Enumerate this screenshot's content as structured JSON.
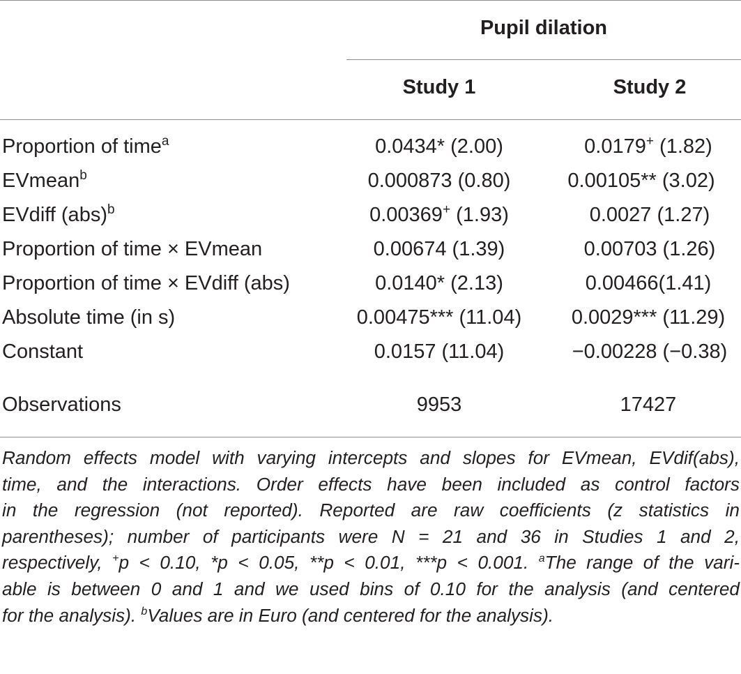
{
  "table": {
    "group_header": "Pupil dilation",
    "columns": [
      "Study 1",
      "Study 2"
    ],
    "rows": [
      {
        "label": "Proportion of time",
        "sup": "a",
        "c1": "0.0434* (2.00)",
        "c2_value": "0.0179",
        "c2_sup": "+",
        "c2_z": " (1.82)"
      },
      {
        "label": "EVmean",
        "sup": "b",
        "c1": "0.000873 (0.80)",
        "c2": "0.00105** (3.02)"
      },
      {
        "label": "EVdiff (abs)",
        "sup": "b",
        "c1_value": "0.00369",
        "c1_sup": "+",
        "c1_z": " (1.93)",
        "c2": "0.0027 (1.27)"
      },
      {
        "label": "Proportion of time × EVmean",
        "c1": "0.00674 (1.39)",
        "c2": "0.00703 (1.26)"
      },
      {
        "label": "Proportion of time × EVdiff (abs)",
        "c1": "0.0140* (2.13)",
        "c2": "0.00466(1.41)"
      },
      {
        "label": "Absolute time (in s)",
        "c1": "0.00475*** (11.04)",
        "c2": "0.0029*** (11.29)"
      },
      {
        "label": "Constant",
        "c1": "0.0157 (11.04)",
        "c2": "−0.00228 (−0.38)"
      }
    ],
    "observations": {
      "label": "Observations",
      "c1": "9953",
      "c2": "17427"
    }
  },
  "footnote": {
    "lines": [
      "Random effects model with varying intercepts and slopes for EVmean, EVdif(abs),",
      "time, and the interactions. Order effects have been included as control factors",
      "in the regression (not reported). Reported are raw coefficients (z statistics in",
      "parentheses); number of participants were N = 21 and 36 in Studies 1 and 2,"
    ],
    "line5_a": "respectively, ",
    "line5_plus": "+",
    "line5_b": "p < 0.10, *p < 0.05, **p < 0.01, ***p < 0.001. ",
    "line5_sup_a": "a",
    "line5_c": "The range of the vari-",
    "line6": "able is between 0 and 1 and we used bins of 0.10 for the analysis (and centered",
    "line7_a": "for the analysis). ",
    "line7_sup_b": "b",
    "line7_b": "Values are in Euro (and centered for the analysis)."
  }
}
